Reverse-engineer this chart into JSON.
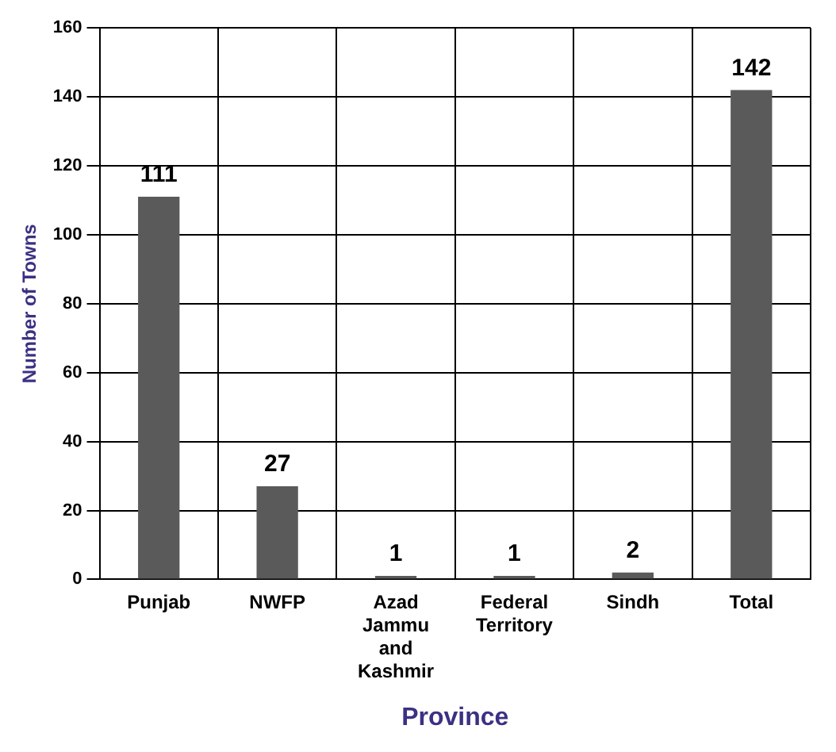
{
  "chart_data": {
    "type": "bar",
    "xlabel": "Province",
    "ylabel": "Number of Towns",
    "categories": [
      "Punjab",
      "NWFP",
      "Azad Jammu and Kashmir",
      "Federal Territory",
      "Sindh",
      "Total"
    ],
    "values": [
      111,
      27,
      1,
      1,
      2,
      142
    ],
    "color": "#5a5a5a",
    "ylim": [
      0,
      160
    ],
    "yticks": [
      0,
      20,
      40,
      60,
      80,
      100,
      120,
      140,
      160
    ],
    "grid": true,
    "data_labels": true,
    "legend": false
  }
}
